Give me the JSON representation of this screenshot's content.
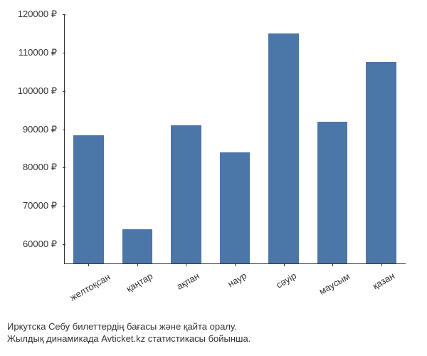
{
  "chart": {
    "type": "bar",
    "categories": [
      "желтоқсан",
      "қаңтар",
      "ақпан",
      "наур",
      "сәуір",
      "маусым",
      "қазан"
    ],
    "values": [
      88500,
      64000,
      91000,
      84000,
      115000,
      92000,
      107500
    ],
    "bar_color": "#4a77a8",
    "background_color": "#ffffff",
    "y_axis": {
      "min": 55000,
      "max": 120000,
      "ticks": [
        60000,
        70000,
        80000,
        90000,
        100000,
        110000,
        120000
      ],
      "tick_labels": [
        "60000 ₽",
        "70000 ₽",
        "80000 ₽",
        "90000 ₽",
        "100000 ₽",
        "110000 ₽",
        "120000 ₽"
      ]
    },
    "bar_width_ratio": 0.62,
    "label_fontsize": 13,
    "text_color": "#333333"
  },
  "caption": {
    "line1": "Иркутска Себу билеттердің бағасы және қайта оралу.",
    "line2": "Жылдық динамикада Avticket.kz статистикасы бойынша."
  }
}
